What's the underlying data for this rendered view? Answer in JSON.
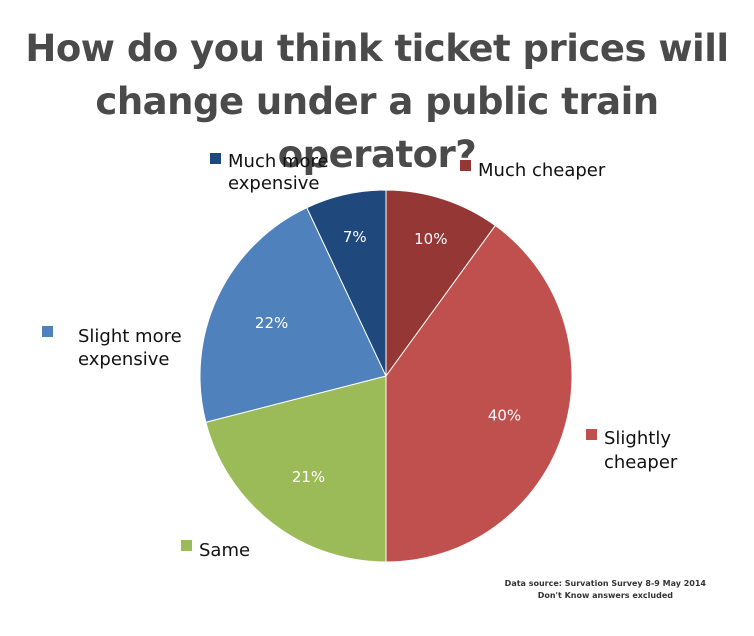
{
  "chart_data": {
    "type": "pie",
    "title_lines": [
      "How do you think ticket prices will",
      "change under a public train operator?"
    ],
    "slices": [
      {
        "label": "Much cheaper",
        "label_lines": [
          "Much cheaper"
        ],
        "value": 10,
        "value_label": "10%",
        "color": "#953735"
      },
      {
        "label": "Slightly cheaper",
        "label_lines": [
          "Slightly",
          "cheaper"
        ],
        "value": 40,
        "value_label": "40%",
        "color": "#c0504d"
      },
      {
        "label": "Same",
        "label_lines": [
          "Same"
        ],
        "value": 21,
        "value_label": "21%",
        "color": "#9bbb59"
      },
      {
        "label": "Slight more expensive",
        "label_lines": [
          "Slight more",
          "expensive"
        ],
        "value": 22,
        "value_label": "22%",
        "color": "#4f81bd"
      },
      {
        "label": "Much more expensive",
        "label_lines": [
          "Much more",
          "expensive"
        ],
        "value": 7,
        "value_label": "7%",
        "color": "#1f497d"
      }
    ],
    "start_angle": "12 o'clock",
    "direction": "clockwise",
    "legend": "labels placed beside slices"
  },
  "footnote": {
    "line1": "Data source: Survation Survey 8-9 May 2014",
    "line2": "Don't Know answers excluded"
  }
}
